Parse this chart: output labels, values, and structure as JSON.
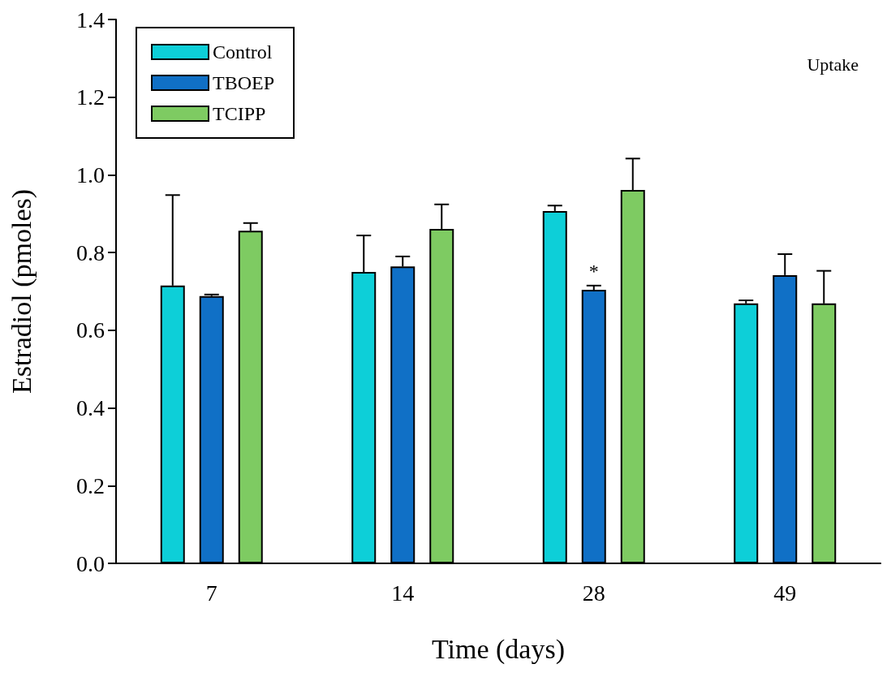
{
  "chart_data": {
    "type": "bar",
    "xlabel": "Time (days)",
    "ylabel": "Estradiol (pmoles)",
    "categories": [
      "7",
      "14",
      "28",
      "49"
    ],
    "series": [
      {
        "name": "Control",
        "color": "#0dcfd8",
        "values": [
          0.715,
          0.75,
          0.907,
          0.669
        ],
        "errors": [
          [
            0.715,
            0.948
          ],
          [
            0.75,
            0.844
          ],
          [
            0.907,
            0.921
          ],
          [
            0.669,
            0.677
          ]
        ]
      },
      {
        "name": "TBOEP",
        "color": "#1070c6",
        "values": [
          0.688,
          0.764,
          0.704,
          0.742
        ],
        "errors": [
          [
            0.688,
            0.692
          ],
          [
            0.764,
            0.79
          ],
          [
            0.704,
            0.715
          ],
          [
            0.742,
            0.796
          ]
        ],
        "value_labels": [
          null,
          null,
          "*",
          null
        ]
      },
      {
        "name": "TCIPP",
        "color": "#7ecb62",
        "values": [
          0.856,
          0.861,
          0.961,
          0.669
        ],
        "errors": [
          [
            0.856,
            0.876
          ],
          [
            0.861,
            0.924
          ],
          [
            0.961,
            1.042
          ],
          [
            0.669,
            0.753
          ]
        ]
      }
    ],
    "annotations": [
      "Uptake"
    ],
    "ylim": [
      0,
      1.4
    ],
    "yticks": [
      {
        "value": 0,
        "label": "0.0"
      },
      0.2,
      0.4,
      0.6,
      0.8,
      {
        "value": 1,
        "label": "1.0"
      },
      1.2,
      1.4
    ],
    "grid": false,
    "legend": "top left"
  }
}
